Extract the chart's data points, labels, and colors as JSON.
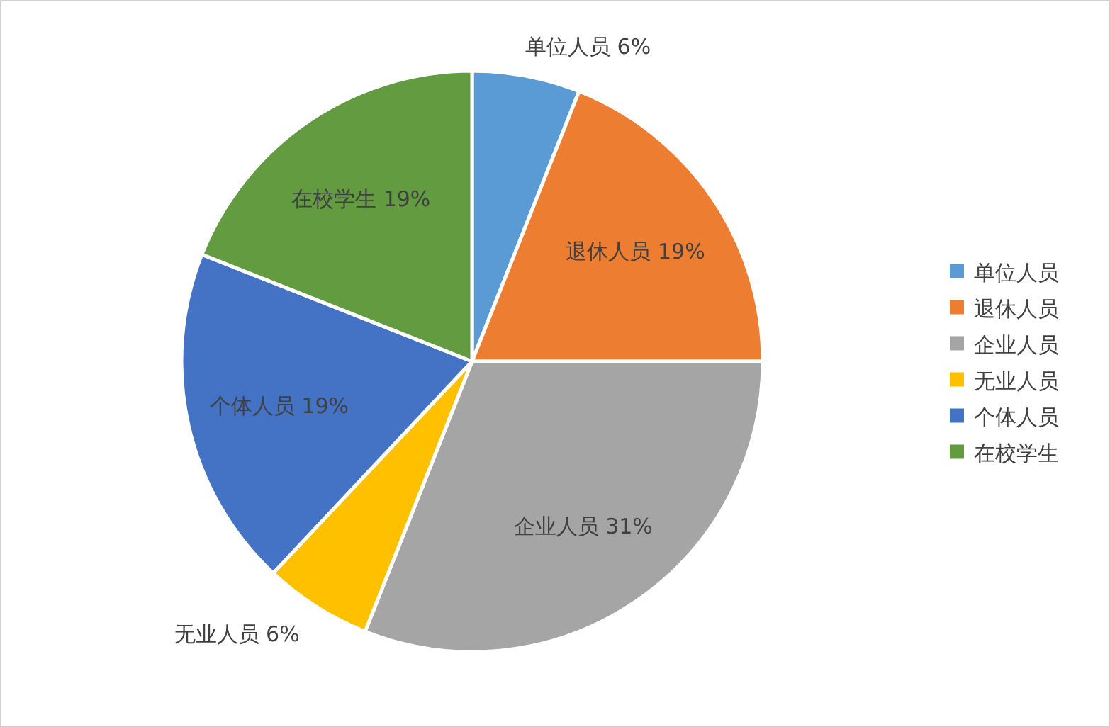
{
  "chart_data": {
    "type": "pie",
    "categories": [
      "单位人员",
      "退休人员",
      "企业人员",
      "无业人员",
      "个体人员",
      "在校学生"
    ],
    "values": [
      6,
      19,
      31,
      6,
      19,
      19
    ],
    "value_labels": [
      "6%",
      "19%",
      "31%",
      "6%",
      "19%",
      "19%"
    ],
    "colors": [
      "#5b9bd5",
      "#ed7d31",
      "#a5a5a5",
      "#ffc000",
      "#4472c4",
      "#629b40"
    ],
    "legend": "right"
  }
}
